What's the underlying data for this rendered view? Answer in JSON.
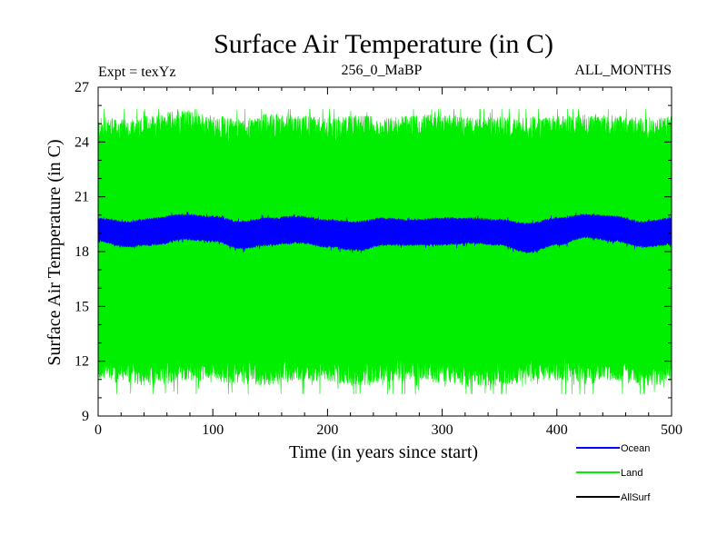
{
  "chart_data": {
    "type": "line",
    "title": "Surface Air Temperature (in C)",
    "subtitle_left": "Expt = texYz",
    "subtitle_center": "256_0_MaBP",
    "subtitle_right": "ALL_MONTHS",
    "xlabel": "Time (in years since start)",
    "ylabel": "Surface Air Temperature (in C)",
    "xlim": [
      0,
      500
    ],
    "ylim": [
      9,
      27
    ],
    "xticks": [
      0,
      100,
      200,
      300,
      400,
      500
    ],
    "yticks": [
      9,
      12,
      15,
      18,
      21,
      24,
      27
    ],
    "grid": false,
    "legend_position": "bottom-right",
    "series": [
      {
        "name": "Land",
        "color": "#00ee00",
        "x": [
          0,
          25,
          50,
          75,
          100,
          125,
          150,
          175,
          200,
          225,
          250,
          275,
          300,
          325,
          350,
          375,
          400,
          425,
          450,
          475,
          500
        ],
        "y_upper": [
          24.7,
          24.6,
          24.9,
          25.1,
          24.8,
          24.6,
          24.9,
          24.8,
          24.7,
          24.8,
          24.7,
          24.8,
          24.9,
          24.7,
          24.8,
          24.7,
          24.8,
          24.9,
          24.8,
          24.7,
          24.8
        ],
        "y_lower": [
          11.6,
          11.4,
          11.3,
          11.6,
          11.5,
          11.4,
          11.3,
          11.6,
          11.5,
          11.3,
          11.5,
          11.6,
          11.4,
          11.3,
          11.3,
          11.5,
          11.6,
          11.4,
          11.5,
          11.3,
          11.4
        ],
        "max": 25.8,
        "min": 10.2
      },
      {
        "name": "Ocean",
        "color": "#0000ff",
        "x": [
          0,
          25,
          50,
          75,
          100,
          125,
          150,
          175,
          200,
          225,
          250,
          275,
          300,
          325,
          350,
          375,
          400,
          425,
          450,
          475,
          500
        ],
        "y_upper": [
          19.8,
          19.6,
          19.8,
          20.0,
          19.9,
          19.6,
          19.8,
          19.9,
          19.7,
          19.6,
          19.8,
          19.7,
          19.8,
          19.8,
          19.7,
          19.5,
          19.8,
          20.0,
          19.9,
          19.6,
          19.8
        ],
        "y_lower": [
          18.6,
          18.3,
          18.4,
          18.7,
          18.6,
          18.2,
          18.4,
          18.5,
          18.3,
          18.1,
          18.4,
          18.4,
          18.4,
          18.5,
          18.4,
          18.0,
          18.4,
          18.8,
          18.6,
          18.3,
          18.4
        ]
      },
      {
        "name": "AllSurf",
        "color": "#000000",
        "x": [],
        "y": []
      }
    ]
  }
}
